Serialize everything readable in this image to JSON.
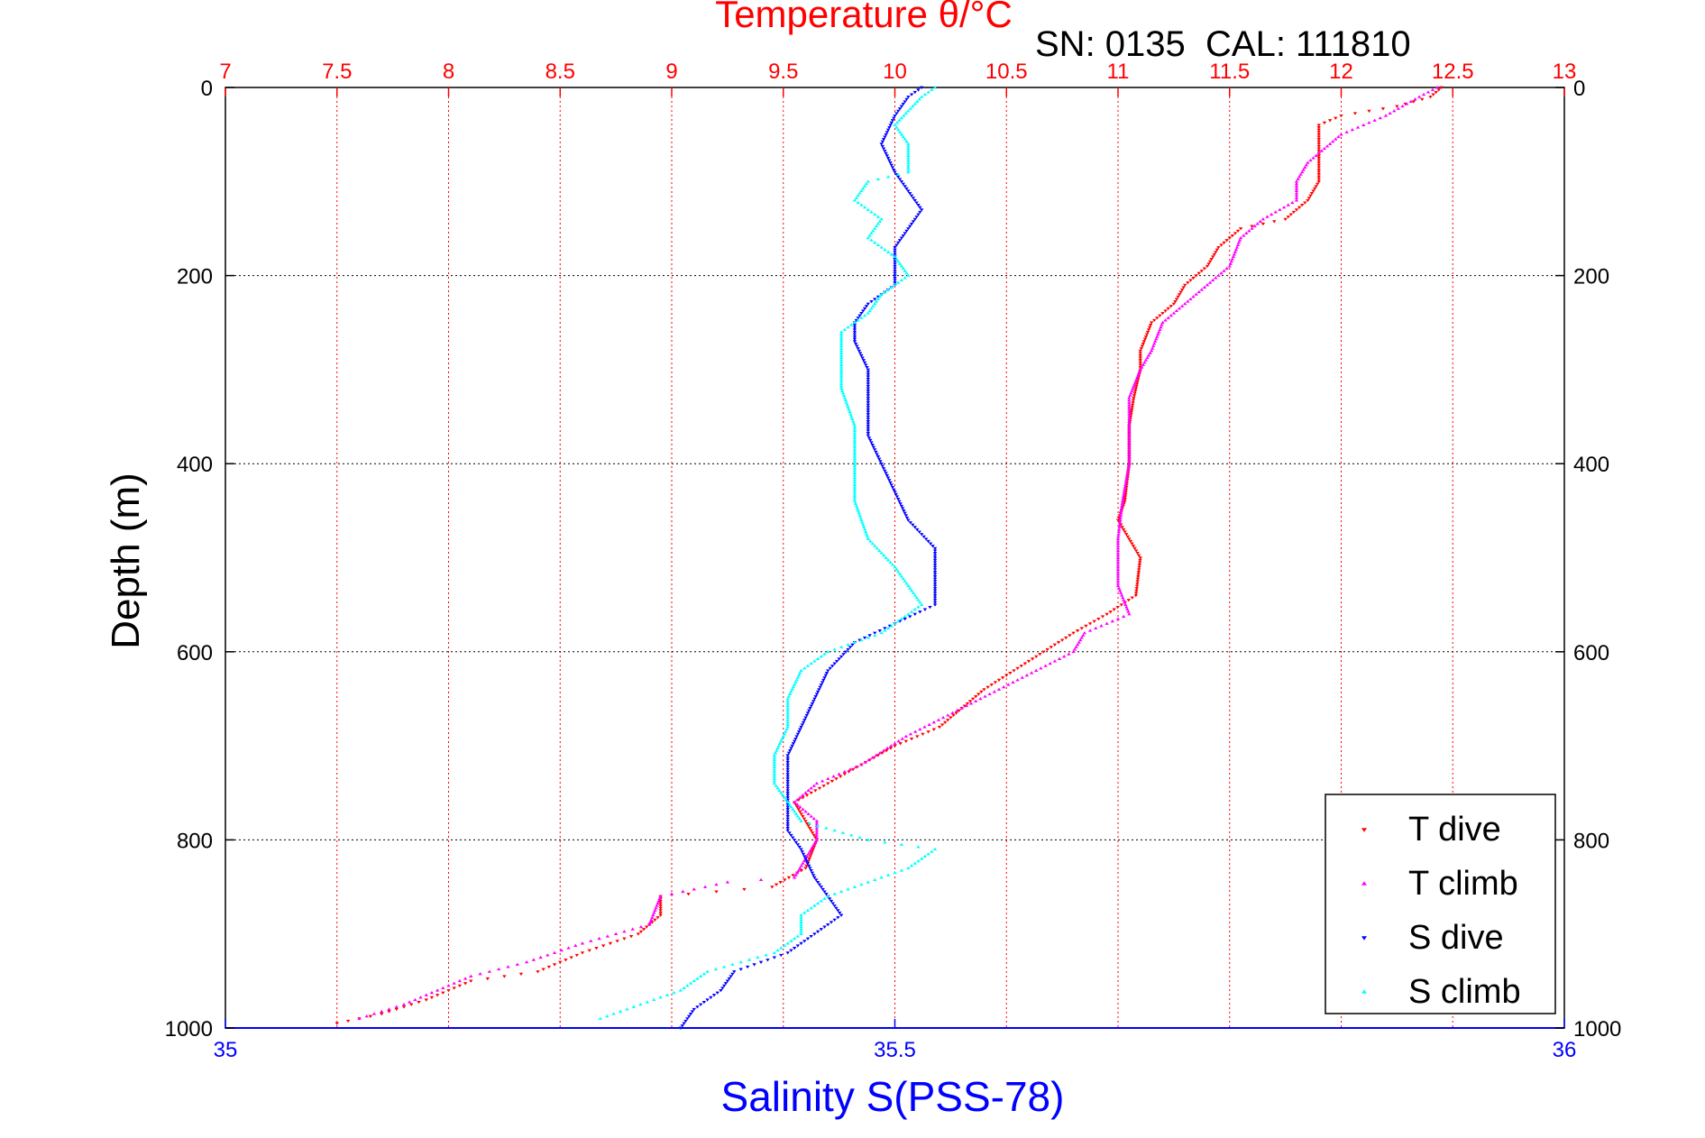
{
  "chart_data": {
    "type": "scatter",
    "title": "Temperature θ/°C",
    "annotation": "SN: 0135  CAL: 111810",
    "xlabel": "Salinity S(PSS-78)",
    "ylabel": "Depth (m)",
    "x_temperature": {
      "lim": [
        7,
        13
      ],
      "ticks": [
        "7",
        "7.5",
        "8",
        "8.5",
        "9",
        "9.5",
        "10",
        "10.5",
        "11",
        "11.5",
        "12",
        "12.5",
        "13"
      ],
      "color": "#ff0000"
    },
    "x_salinity": {
      "lim": [
        35,
        36
      ],
      "ticks": [
        "35",
        "35.5",
        "36"
      ],
      "color": "#0000ff"
    },
    "y": {
      "lim": [
        0,
        1000
      ],
      "ticks": [
        "0",
        "200",
        "400",
        "600",
        "800",
        "1000"
      ],
      "reversed": true
    },
    "grid": true,
    "legend_position": "bottom-right",
    "series": [
      {
        "name": "T dive",
        "axis": "temperature",
        "color": "#ff0000",
        "marker": "triangle-down",
        "points": [
          [
            12.45,
            0
          ],
          [
            12.4,
            10
          ],
          [
            12.25,
            20
          ],
          [
            12.0,
            30
          ],
          [
            11.9,
            40
          ],
          [
            11.9,
            60
          ],
          [
            11.9,
            80
          ],
          [
            11.9,
            100
          ],
          [
            11.85,
            120
          ],
          [
            11.75,
            140
          ],
          [
            11.55,
            150
          ],
          [
            11.45,
            170
          ],
          [
            11.4,
            190
          ],
          [
            11.3,
            210
          ],
          [
            11.25,
            230
          ],
          [
            11.15,
            250
          ],
          [
            11.1,
            280
          ],
          [
            11.1,
            300
          ],
          [
            11.07,
            330
          ],
          [
            11.05,
            360
          ],
          [
            11.05,
            400
          ],
          [
            11.03,
            440
          ],
          [
            11.0,
            460
          ],
          [
            11.05,
            480
          ],
          [
            11.1,
            500
          ],
          [
            11.08,
            540
          ],
          [
            10.95,
            560
          ],
          [
            10.8,
            580
          ],
          [
            10.6,
            610
          ],
          [
            10.4,
            640
          ],
          [
            10.2,
            680
          ],
          [
            10.0,
            700
          ],
          [
            9.85,
            720
          ],
          [
            9.7,
            740
          ],
          [
            9.55,
            760
          ],
          [
            9.6,
            780
          ],
          [
            9.65,
            800
          ],
          [
            9.6,
            830
          ],
          [
            9.45,
            850
          ],
          [
            9.2,
            855
          ],
          [
            8.95,
            860
          ],
          [
            8.95,
            880
          ],
          [
            8.85,
            900
          ],
          [
            8.6,
            920
          ],
          [
            8.4,
            940
          ],
          [
            8.1,
            950
          ],
          [
            7.9,
            970
          ],
          [
            7.7,
            985
          ],
          [
            7.5,
            995
          ]
        ]
      },
      {
        "name": "T climb",
        "axis": "temperature",
        "color": "#ff00ff",
        "marker": "triangle-up",
        "points": [
          [
            12.43,
            0
          ],
          [
            12.35,
            10
          ],
          [
            12.2,
            30
          ],
          [
            12.0,
            50
          ],
          [
            11.85,
            80
          ],
          [
            11.8,
            100
          ],
          [
            11.8,
            120
          ],
          [
            11.65,
            140
          ],
          [
            11.55,
            160
          ],
          [
            11.5,
            190
          ],
          [
            11.4,
            210
          ],
          [
            11.3,
            230
          ],
          [
            11.2,
            250
          ],
          [
            11.15,
            280
          ],
          [
            11.1,
            300
          ],
          [
            11.05,
            330
          ],
          [
            11.05,
            360
          ],
          [
            11.05,
            400
          ],
          [
            11.02,
            440
          ],
          [
            11.0,
            480
          ],
          [
            11.0,
            500
          ],
          [
            11.0,
            530
          ],
          [
            11.05,
            560
          ],
          [
            10.85,
            580
          ],
          [
            10.8,
            600
          ],
          [
            10.55,
            630
          ],
          [
            10.3,
            660
          ],
          [
            10.05,
            690
          ],
          [
            9.85,
            720
          ],
          [
            9.65,
            740
          ],
          [
            9.55,
            760
          ],
          [
            9.65,
            780
          ],
          [
            9.65,
            800
          ],
          [
            9.6,
            820
          ],
          [
            9.55,
            840
          ],
          [
            9.25,
            845
          ],
          [
            8.95,
            860
          ],
          [
            8.9,
            890
          ],
          [
            8.6,
            910
          ],
          [
            8.35,
            930
          ],
          [
            8.1,
            945
          ],
          [
            7.95,
            960
          ],
          [
            7.8,
            975
          ],
          [
            7.6,
            990
          ]
        ]
      },
      {
        "name": "S dive",
        "axis": "salinity",
        "color": "#0000ff",
        "marker": "triangle-down",
        "points": [
          [
            35.52,
            0
          ],
          [
            35.51,
            10
          ],
          [
            35.5,
            30
          ],
          [
            35.49,
            60
          ],
          [
            35.5,
            90
          ],
          [
            35.51,
            110
          ],
          [
            35.52,
            130
          ],
          [
            35.51,
            150
          ],
          [
            35.5,
            170
          ],
          [
            35.5,
            190
          ],
          [
            35.5,
            210
          ],
          [
            35.48,
            230
          ],
          [
            35.47,
            250
          ],
          [
            35.47,
            270
          ],
          [
            35.48,
            300
          ],
          [
            35.48,
            330
          ],
          [
            35.48,
            370
          ],
          [
            35.49,
            400
          ],
          [
            35.5,
            430
          ],
          [
            35.51,
            460
          ],
          [
            35.53,
            490
          ],
          [
            35.53,
            520
          ],
          [
            35.53,
            550
          ],
          [
            35.5,
            570
          ],
          [
            35.47,
            590
          ],
          [
            35.45,
            620
          ],
          [
            35.44,
            650
          ],
          [
            35.43,
            680
          ],
          [
            35.42,
            710
          ],
          [
            35.42,
            740
          ],
          [
            35.42,
            760
          ],
          [
            35.42,
            790
          ],
          [
            35.43,
            810
          ],
          [
            35.44,
            840
          ],
          [
            35.45,
            860
          ],
          [
            35.46,
            880
          ],
          [
            35.44,
            900
          ],
          [
            35.42,
            920
          ],
          [
            35.38,
            940
          ],
          [
            35.37,
            960
          ],
          [
            35.35,
            980
          ],
          [
            35.34,
            1000
          ]
        ]
      },
      {
        "name": "S climb",
        "axis": "salinity",
        "color": "#00ffff",
        "marker": "triangle-up",
        "points": [
          [
            35.53,
            0
          ],
          [
            35.52,
            10
          ],
          [
            35.5,
            40
          ],
          [
            35.51,
            60
          ],
          [
            35.51,
            90
          ],
          [
            35.48,
            100
          ],
          [
            35.47,
            120
          ],
          [
            35.49,
            140
          ],
          [
            35.48,
            160
          ],
          [
            35.5,
            180
          ],
          [
            35.51,
            200
          ],
          [
            35.49,
            220
          ],
          [
            35.48,
            240
          ],
          [
            35.46,
            260
          ],
          [
            35.46,
            290
          ],
          [
            35.46,
            320
          ],
          [
            35.47,
            360
          ],
          [
            35.47,
            400
          ],
          [
            35.47,
            440
          ],
          [
            35.48,
            480
          ],
          [
            35.5,
            510
          ],
          [
            35.51,
            530
          ],
          [
            35.52,
            550
          ],
          [
            35.49,
            580
          ],
          [
            35.45,
            600
          ],
          [
            35.43,
            620
          ],
          [
            35.42,
            650
          ],
          [
            35.42,
            680
          ],
          [
            35.41,
            710
          ],
          [
            35.41,
            740
          ],
          [
            35.42,
            760
          ],
          [
            35.43,
            780
          ],
          [
            35.48,
            800
          ],
          [
            35.53,
            810
          ],
          [
            35.51,
            830
          ],
          [
            35.45,
            860
          ],
          [
            35.43,
            880
          ],
          [
            35.43,
            900
          ],
          [
            35.41,
            920
          ],
          [
            35.36,
            940
          ],
          [
            35.34,
            960
          ],
          [
            35.3,
            980
          ],
          [
            35.28,
            990
          ]
        ]
      }
    ]
  }
}
